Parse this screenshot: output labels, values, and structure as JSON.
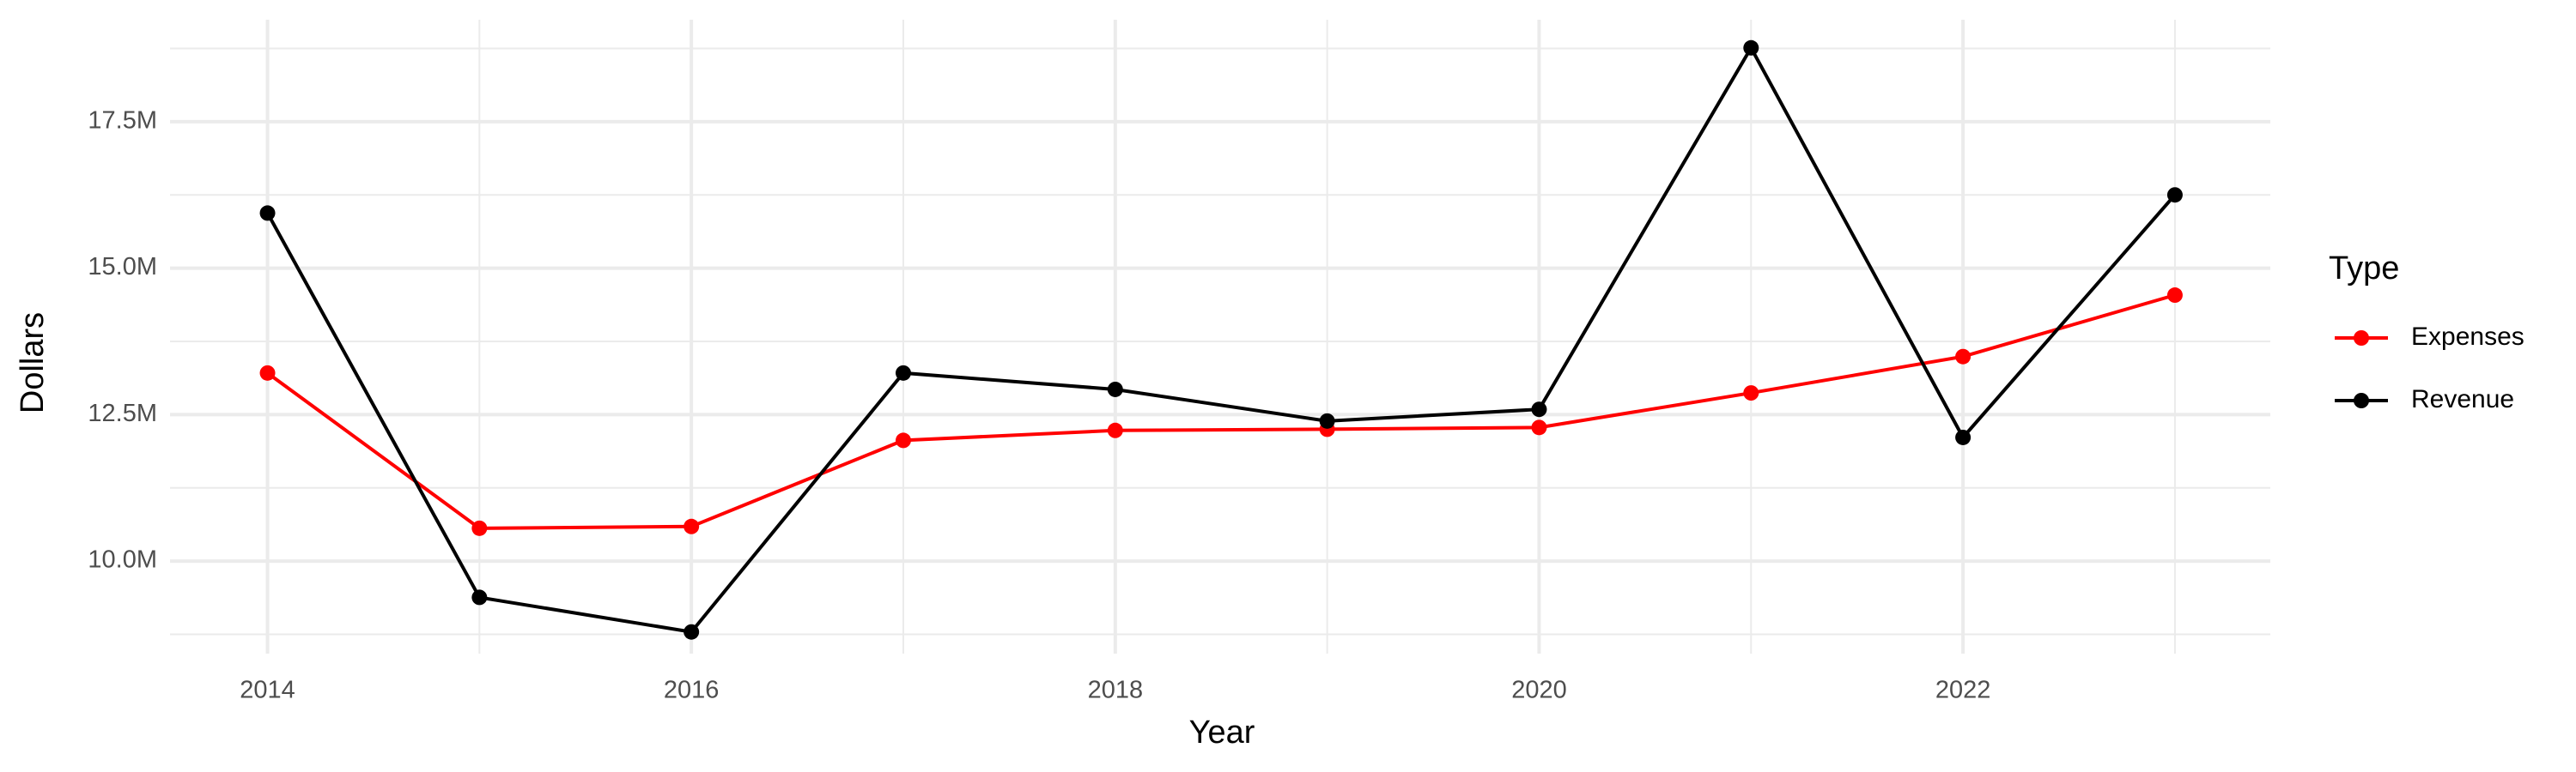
{
  "chart_data": {
    "type": "line",
    "x_label": "Year",
    "y_label": "Dollars",
    "legend_title": "Type",
    "x": [
      2014,
      2015,
      2016,
      2017,
      2018,
      2019,
      2020,
      2021,
      2022,
      2023
    ],
    "series": [
      {
        "name": "Expenses",
        "color": "#ff0000",
        "values": [
          13210000,
          10560000,
          10590000,
          12060000,
          12230000,
          12250000,
          12280000,
          12870000,
          13490000,
          14540000
        ]
      },
      {
        "name": "Revenue",
        "color": "#000000",
        "values": [
          15940000,
          9380000,
          8790000,
          13210000,
          12930000,
          12390000,
          12590000,
          18760000,
          12110000,
          16250000
        ]
      }
    ],
    "xlim": [
      2013.54,
      2023.45
    ],
    "xticks": [
      2014,
      2016,
      2018,
      2020,
      2022
    ],
    "ylim": [
      8420000,
      19240000
    ],
    "yticks": [
      {
        "value": 10000000,
        "label": "10.0M"
      },
      {
        "value": 12500000,
        "label": "12.5M"
      },
      {
        "value": 15000000,
        "label": "15.0M"
      },
      {
        "value": 17500000,
        "label": "17.5M"
      }
    ],
    "grid": true,
    "minor_grid": true,
    "legend": "right"
  }
}
